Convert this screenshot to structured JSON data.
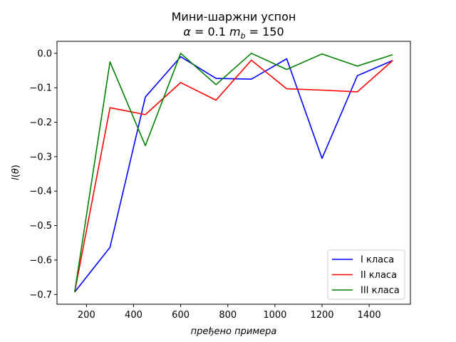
{
  "chart_data": {
    "type": "line",
    "title": "Мини-шаржни успон",
    "subtitle_parts": {
      "alpha_symbol": "α",
      "alpha_text": " = 0.1 ",
      "mb_symbol": "m",
      "mb_subscript": "b",
      "mb_text": " = 150"
    },
    "xlabel": "пређено примера",
    "ylabel_parts": {
      "l": "l",
      "open": "(",
      "theta": "θ",
      "close": ")"
    },
    "xlim": [
      75,
      1575
    ],
    "ylim": [
      -0.7283,
      0.0347
    ],
    "x_ticks": [
      200,
      400,
      600,
      800,
      1000,
      1200,
      1400
    ],
    "x_tick_labels": [
      "200",
      "400",
      "600",
      "800",
      "1000",
      "1200",
      "1400"
    ],
    "y_ticks": [
      0.0,
      -0.1,
      -0.2,
      -0.3,
      -0.4,
      -0.5,
      -0.6,
      -0.7
    ],
    "y_tick_labels": [
      "0.0",
      "−0.1",
      "−0.2",
      "−0.3",
      "−0.4",
      "−0.5",
      "−0.6",
      "−0.7"
    ],
    "x": [
      150,
      300,
      450,
      600,
      750,
      900,
      1050,
      1200,
      1350,
      1500
    ],
    "series": [
      {
        "name": "I класа",
        "color": "#0000ff",
        "values": [
          -0.693,
          -0.563,
          -0.127,
          -0.01,
          -0.073,
          -0.075,
          -0.016,
          -0.305,
          -0.065,
          -0.021
        ]
      },
      {
        "name": "II класа",
        "color": "#ff0000",
        "values": [
          -0.693,
          -0.158,
          -0.178,
          -0.085,
          -0.136,
          -0.02,
          -0.103,
          -0.107,
          -0.112,
          -0.021
        ]
      },
      {
        "name": "III класа",
        "color": "#008000",
        "values": [
          -0.693,
          -0.025,
          -0.268,
          0.0,
          -0.091,
          0.0,
          -0.047,
          -0.002,
          -0.037,
          -0.004
        ]
      }
    ],
    "legend_position": "lower-right",
    "grid": false
  }
}
